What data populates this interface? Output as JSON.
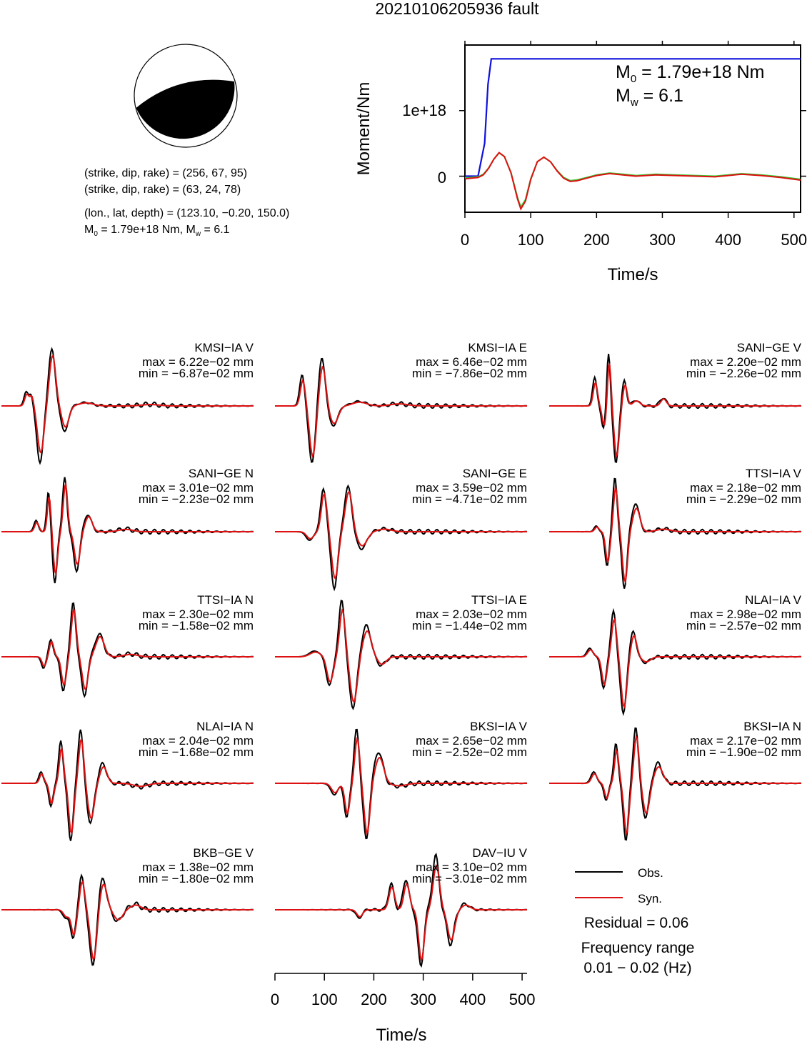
{
  "title": "20210106205936 fault",
  "mechanism": {
    "plane1": "(strike, dip, rake) = (256, 67, 95)",
    "plane2": "(strike, dip, rake) = (63, 24, 78)",
    "location": "(lon., lat, depth) = (123.10, −0.20, 150.0)",
    "moment_line": {
      "m0": "1.79e+18 Nm",
      "mw": "6.1"
    }
  },
  "moment_plot": {
    "ylabel": "Moment/Nm",
    "xlabel": "Time/s",
    "xticks": [
      "0",
      "100",
      "200",
      "300",
      "400",
      "500"
    ],
    "yticks": [
      "0",
      "1e+18"
    ],
    "m0_value": "1.79e+18 Nm",
    "mw_value": "6.1"
  },
  "chart_data": {
    "type": "line",
    "moment_function": {
      "x": [
        0,
        20,
        30,
        35,
        40,
        510
      ],
      "y": [
        0,
        0,
        5e+17,
        1.4e+18,
        1.79e+18,
        1.79e+18
      ],
      "xlim": [
        0,
        510
      ],
      "ylim": [
        -5.5e+17,
        2e+18
      ]
    },
    "moment_rate": {
      "x": [
        0,
        20,
        28,
        36,
        44,
        52,
        60,
        70,
        80,
        85,
        92,
        100,
        110,
        120,
        130,
        140,
        150,
        160,
        170,
        185,
        200,
        220,
        240,
        260,
        290,
        320,
        350,
        380,
        420,
        450,
        480,
        510
      ],
      "y": [
        -0.04,
        -0.02,
        0.02,
        0.12,
        0.26,
        0.36,
        0.3,
        0.05,
        -0.35,
        -0.5,
        -0.38,
        -0.05,
        0.22,
        0.29,
        0.22,
        0.08,
        -0.03,
        -0.08,
        -0.07,
        -0.03,
        0.01,
        0.04,
        0.02,
        0.0,
        0.02,
        0.01,
        0.0,
        -0.01,
        0.03,
        0.01,
        -0.02,
        -0.06
      ]
    },
    "waveform_xlim": [
      0,
      510
    ],
    "waveform_xticks": [
      "0",
      "100",
      "200",
      "300",
      "400",
      "500"
    ],
    "waveform_xlabel": "Time/s",
    "stations": [
      {
        "name": "KMSI−IA V",
        "max": "max = 6.22e−02 mm",
        "min": "min = −6.87e−02 mm"
      },
      {
        "name": "KMSI−IA E",
        "max": "max = 6.46e−02 mm",
        "min": "min = −7.86e−02 mm"
      },
      {
        "name": "SANI−GE V",
        "max": "max = 2.20e−02 mm",
        "min": "min = −2.26e−02 mm"
      },
      {
        "name": "SANI−GE N",
        "max": "max = 3.01e−02 mm",
        "min": "min = −2.23e−02 mm"
      },
      {
        "name": "SANI−GE E",
        "max": "max = 3.59e−02 mm",
        "min": "min = −4.71e−02 mm"
      },
      {
        "name": "TTSI−IA V",
        "max": "max = 2.18e−02 mm",
        "min": "min = −2.29e−02 mm"
      },
      {
        "name": "TTSI−IA N",
        "max": "max = 2.30e−02 mm",
        "min": "min = −1.58e−02 mm"
      },
      {
        "name": "TTSI−IA E",
        "max": "max = 2.03e−02 mm",
        "min": "min = −1.44e−02 mm"
      },
      {
        "name": "NLAI−IA V",
        "max": "max = 2.98e−02 mm",
        "min": "min = −2.57e−02 mm"
      },
      {
        "name": "NLAI−IA N",
        "max": "max = 2.04e−02 mm",
        "min": "min = −1.68e−02 mm"
      },
      {
        "name": "BKSI−IA V",
        "max": "max = 2.65e−02 mm",
        "min": "min = −2.52e−02 mm"
      },
      {
        "name": "BKSI−IA N",
        "max": "max = 2.17e−02 mm",
        "min": "min = −1.90e−02 mm"
      },
      {
        "name": "BKB−GE V",
        "max": "max = 1.38e−02 mm",
        "min": "min = −1.80e−02 mm"
      },
      {
        "name": "DAV−IU V",
        "max": "max = 3.10e−02 mm",
        "min": "min = −3.01e−02 mm"
      }
    ],
    "legend": {
      "obs": "Obs.",
      "syn": "Syn."
    }
  },
  "residual": "Residual = 0.06",
  "frequency": {
    "label": "Frequency range",
    "value": "0.01 − 0.02 (Hz)"
  },
  "colors": {
    "moment_function": "#1010dd",
    "moment_rate_a": "#dd1111",
    "moment_rate_b": "#33cc33",
    "observed": "#000000",
    "synthetic": "#dd1111",
    "beachball_fill": "#000000"
  }
}
